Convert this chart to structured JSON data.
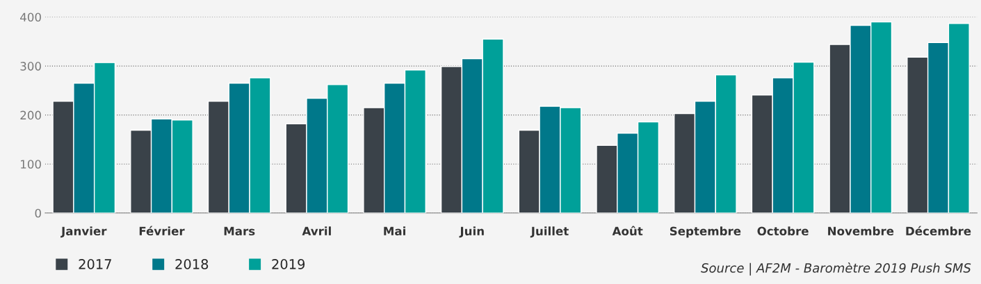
{
  "chart_data": {
    "type": "bar",
    "categories": [
      "Janvier",
      "Février",
      "Mars",
      "Avril",
      "Mai",
      "Juin",
      "Juillet",
      "Août",
      "Septembre",
      "Octobre",
      "Novembre",
      "Décembre"
    ],
    "series": [
      {
        "name": "2017",
        "color": "#3a4249",
        "values": [
          228,
          169,
          228,
          182,
          215,
          299,
          169,
          138,
          203,
          241,
          344,
          318
        ]
      },
      {
        "name": "2018",
        "color": "#00788a",
        "values": [
          265,
          192,
          265,
          234,
          265,
          315,
          218,
          163,
          228,
          276,
          383,
          348
        ]
      },
      {
        "name": "2019",
        "color": "#00a099",
        "values": [
          307,
          190,
          276,
          262,
          292,
          355,
          215,
          186,
          282,
          308,
          390,
          387
        ]
      }
    ],
    "ylim": [
      0,
      400
    ],
    "yticks": [
      0,
      100,
      200,
      300,
      400
    ],
    "grid": "y",
    "legend": "bottom left",
    "annotations": [
      "Source | AF2M - Baromètre 2019 Push SMS"
    ]
  }
}
